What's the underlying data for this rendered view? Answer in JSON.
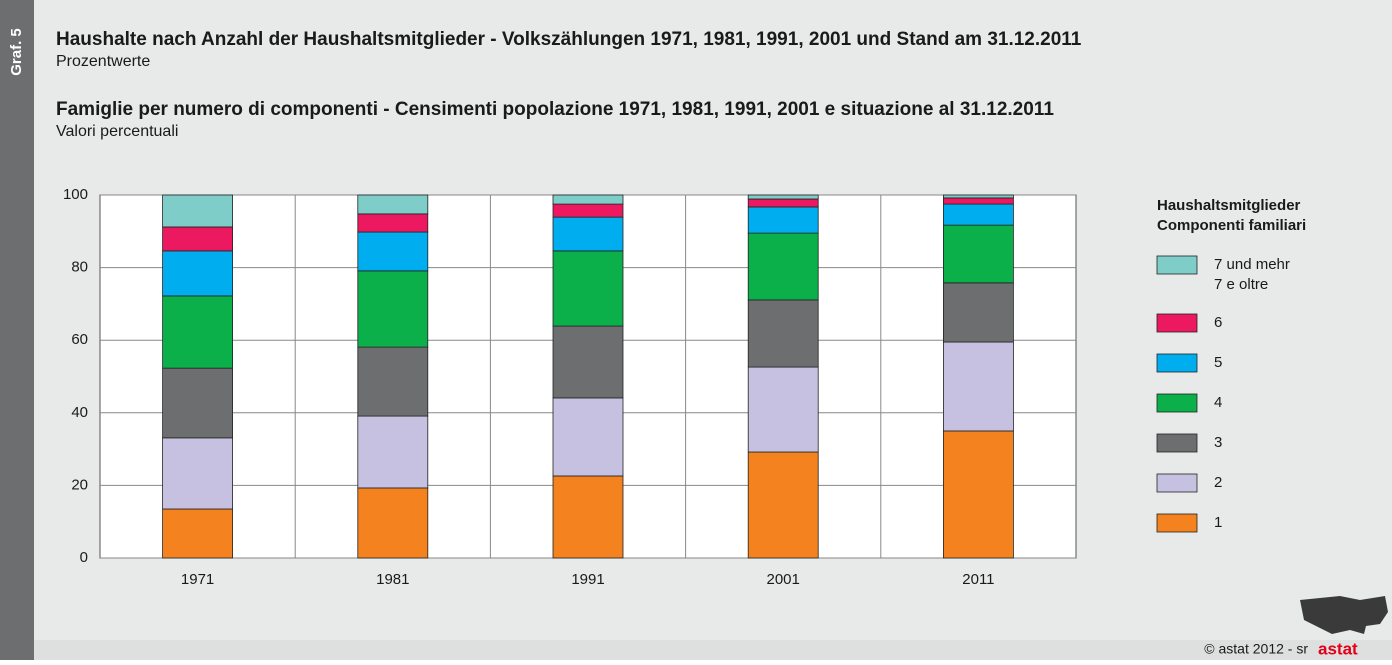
{
  "chart_data": {
    "type": "stacked-bar",
    "sidebar_label": "Graf. 5",
    "titles": [
      {
        "title": "Haushalte nach Anzahl der Haushaltsmitglieder - Volkszählungen 1971, 1981, 1991, 2001 und Stand am 31.12.2011",
        "subtitle": "Prozentwerte"
      },
      {
        "title": "Famiglie per numero di componenti - Censimenti popolazione 1971, 1981, 1991, 2001 e situazione al 31.12.2011",
        "subtitle": "Valori percentuali"
      }
    ],
    "categories": [
      "1971",
      "1981",
      "1991",
      "2001",
      "2011"
    ],
    "series": [
      {
        "name": [
          "1"
        ],
        "color": "#f4831f",
        "values": [
          13.5,
          19.3,
          22.6,
          29.2,
          35.0
        ]
      },
      {
        "name": [
          "2"
        ],
        "color": "#c6c1e0",
        "values": [
          19.6,
          19.8,
          21.5,
          23.4,
          24.5
        ]
      },
      {
        "name": [
          "3"
        ],
        "color": "#6d6e70",
        "values": [
          19.2,
          19.0,
          19.8,
          18.5,
          16.3
        ]
      },
      {
        "name": [
          "4"
        ],
        "color": "#0bb04b",
        "values": [
          19.9,
          21.0,
          20.7,
          18.4,
          15.9
        ]
      },
      {
        "name": [
          "5"
        ],
        "color": "#00aeef",
        "values": [
          12.4,
          10.7,
          9.3,
          7.2,
          5.8
        ]
      },
      {
        "name": [
          "6"
        ],
        "color": "#ec1961",
        "values": [
          6.6,
          5.0,
          3.6,
          2.2,
          1.7
        ]
      },
      {
        "name": [
          "7 und mehr",
          "7 e oltre"
        ],
        "color": "#7fcdc8",
        "values": [
          8.8,
          5.2,
          2.5,
          1.1,
          0.8
        ]
      }
    ],
    "legend_title": [
      "Haushaltsmitglieder",
      "Componenti familiari"
    ],
    "ylim": [
      0,
      100
    ],
    "yticks": [
      0,
      20,
      40,
      60,
      80,
      100
    ],
    "grid": true,
    "source": "© astat 2012 - sr",
    "logo": "astat"
  }
}
